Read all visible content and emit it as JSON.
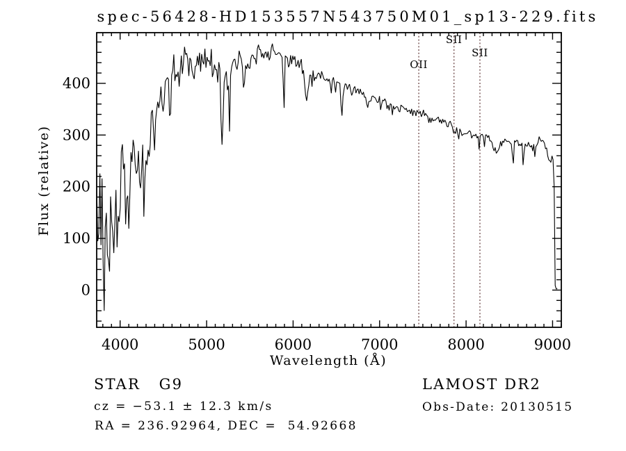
{
  "window": {
    "background": "#ffffff"
  },
  "chart_data": {
    "type": "line",
    "title": "spec-56428-HD153557N543750M01_sp13-229.fits",
    "xlabel": "Wavelength (Å)",
    "ylabel": "Flux (relative)",
    "xlim": [
      3729,
      9101
    ],
    "ylim": [
      -72,
      498
    ],
    "x_major_ticks": [
      4000,
      5000,
      6000,
      7000,
      8000,
      9000
    ],
    "x_minor_step": 100,
    "y_major_ticks": [
      0,
      100,
      200,
      300,
      400
    ],
    "y_minor_step": 20,
    "grid": false,
    "legend": null,
    "background": "#ffffff",
    "line_color": "#000000",
    "marker_line_color": "#6b4444",
    "noise_seed": 20130515,
    "line_markers": [
      {
        "label": "OII",
        "wavelength": 7453,
        "label_baseline_y": 98
      },
      {
        "label": "SII",
        "wavelength": 7860,
        "label_baseline_y": 62
      },
      {
        "label": "SII",
        "wavelength": 8160,
        "label_baseline_y": 81
      }
    ],
    "series": [
      {
        "name": "spectrum",
        "envelope_points": [
          [
            3729,
            120
          ],
          [
            3750,
            150
          ],
          [
            3780,
            160
          ],
          [
            3800,
            150
          ],
          [
            3830,
            118
          ],
          [
            3860,
            148
          ],
          [
            3900,
            108
          ],
          [
            3933,
            55
          ],
          [
            3950,
            160
          ],
          [
            3969,
            110
          ],
          [
            4000,
            218
          ],
          [
            4030,
            245
          ],
          [
            4060,
            215
          ],
          [
            4101,
            152
          ],
          [
            4130,
            268
          ],
          [
            4160,
            295
          ],
          [
            4200,
            262
          ],
          [
            4227,
            196
          ],
          [
            4260,
            278
          ],
          [
            4305,
            214
          ],
          [
            4340,
            290
          ],
          [
            4380,
            334
          ],
          [
            4420,
            328
          ],
          [
            4460,
            364
          ],
          [
            4500,
            384
          ],
          [
            4540,
            404
          ],
          [
            4560,
            392
          ],
          [
            4575,
            310
          ],
          [
            4590,
            398
          ],
          [
            4600,
            424
          ],
          [
            4640,
            440
          ],
          [
            4680,
            415
          ],
          [
            4720,
            450
          ],
          [
            4760,
            460
          ],
          [
            4800,
            440
          ],
          [
            4861,
            404
          ],
          [
            4900,
            450
          ],
          [
            4950,
            455
          ],
          [
            5000,
            435
          ],
          [
            5040,
            445
          ],
          [
            5100,
            432
          ],
          [
            5155,
            415
          ],
          [
            5180,
            275
          ],
          [
            5205,
            415
          ],
          [
            5245,
            420
          ],
          [
            5265,
            330
          ],
          [
            5285,
            428
          ],
          [
            5330,
            440
          ],
          [
            5400,
            448
          ],
          [
            5450,
            442
          ],
          [
            5500,
            448
          ],
          [
            5560,
            452
          ],
          [
            5620,
            458
          ],
          [
            5680,
            458
          ],
          [
            5730,
            463
          ],
          [
            5780,
            464
          ],
          [
            5820,
            461
          ],
          [
            5860,
            452
          ],
          [
            5880,
            450
          ],
          [
            5893,
            324
          ],
          [
            5906,
            448
          ],
          [
            5960,
            448
          ],
          [
            6020,
            442
          ],
          [
            6080,
            438
          ],
          [
            6122,
            424
          ],
          [
            6162,
            371
          ],
          [
            6200,
            420
          ],
          [
            6270,
            417
          ],
          [
            6320,
            412
          ],
          [
            6380,
            408
          ],
          [
            6440,
            406
          ],
          [
            6500,
            402
          ],
          [
            6540,
            399
          ],
          [
            6563,
            331
          ],
          [
            6585,
            397
          ],
          [
            6650,
            393
          ],
          [
            6720,
            388
          ],
          [
            6790,
            383
          ],
          [
            6870,
            362
          ],
          [
            6920,
            372
          ],
          [
            6990,
            369
          ],
          [
            7050,
            366
          ],
          [
            7120,
            360
          ],
          [
            7190,
            351
          ],
          [
            7250,
            354
          ],
          [
            7320,
            349
          ],
          [
            7390,
            347
          ],
          [
            7455,
            344
          ],
          [
            7520,
            341
          ],
          [
            7594,
            328
          ],
          [
            7640,
            331
          ],
          [
            7700,
            329
          ],
          [
            7750,
            327
          ],
          [
            7800,
            324
          ],
          [
            7860,
            313
          ],
          [
            7920,
            307
          ],
          [
            7980,
            301
          ],
          [
            8040,
            303
          ],
          [
            8100,
            297
          ],
          [
            8160,
            294
          ],
          [
            8230,
            299
          ],
          [
            8290,
            284
          ],
          [
            8350,
            271
          ],
          [
            8420,
            288
          ],
          [
            8490,
            287
          ],
          [
            8530,
            284
          ],
          [
            8542,
            222
          ],
          [
            8556,
            287
          ],
          [
            8620,
            283
          ],
          [
            8650,
            285
          ],
          [
            8662,
            226
          ],
          [
            8676,
            288
          ],
          [
            8700,
            288
          ],
          [
            8750,
            283
          ],
          [
            8800,
            279
          ],
          [
            8850,
            293
          ],
          [
            8900,
            284
          ],
          [
            8950,
            259
          ],
          [
            8985,
            248
          ],
          [
            9000,
            266
          ],
          [
            9015,
            238
          ],
          [
            9022,
            150
          ],
          [
            9030,
            8
          ],
          [
            9040,
            3
          ],
          [
            9055,
            2
          ]
        ],
        "noise_amplitude": [
          [
            3729,
            140
          ],
          [
            3780,
            130
          ],
          [
            3850,
            100
          ],
          [
            3950,
            75
          ],
          [
            4050,
            58
          ],
          [
            4150,
            48
          ],
          [
            4250,
            52
          ],
          [
            4350,
            45
          ],
          [
            4450,
            40
          ],
          [
            4550,
            38
          ],
          [
            4650,
            34
          ],
          [
            4750,
            30
          ],
          [
            4850,
            30
          ],
          [
            4950,
            25
          ],
          [
            5050,
            25
          ],
          [
            5150,
            30
          ],
          [
            5180,
            8
          ],
          [
            5250,
            26
          ],
          [
            5350,
            24
          ],
          [
            5450,
            22
          ],
          [
            5550,
            20
          ],
          [
            5650,
            18
          ],
          [
            5750,
            17
          ],
          [
            5850,
            14
          ],
          [
            5893,
            5
          ],
          [
            5950,
            13
          ],
          [
            6050,
            13
          ],
          [
            6150,
            16
          ],
          [
            6250,
            12
          ],
          [
            6350,
            12
          ],
          [
            6450,
            11
          ],
          [
            6563,
            5
          ],
          [
            6650,
            11
          ],
          [
            6750,
            10
          ],
          [
            6850,
            10
          ],
          [
            6950,
            9
          ],
          [
            7050,
            9
          ],
          [
            7150,
            9
          ],
          [
            7250,
            8
          ],
          [
            7350,
            8
          ],
          [
            7450,
            8
          ],
          [
            7550,
            8
          ],
          [
            7650,
            7
          ],
          [
            7750,
            8
          ],
          [
            7850,
            8
          ],
          [
            7950,
            8
          ],
          [
            8050,
            9
          ],
          [
            8150,
            10
          ],
          [
            8250,
            11
          ],
          [
            8350,
            9
          ],
          [
            8450,
            8
          ],
          [
            8542,
            4
          ],
          [
            8600,
            8
          ],
          [
            8662,
            4
          ],
          [
            8720,
            8
          ],
          [
            8800,
            10
          ],
          [
            8880,
            10
          ],
          [
            8950,
            8
          ],
          [
            9000,
            6
          ],
          [
            9022,
            3
          ],
          [
            9055,
            1
          ]
        ]
      }
    ]
  },
  "footer": {
    "class_line_left": "STAR   G9",
    "class_line_right": "LAMOST DR2",
    "cz_line": "cz = −53.1 ± 12.3 km/s",
    "obs_line": "Obs-Date: 20130515",
    "radec_line": "RA = 236.92964, DEC =  54.92668"
  }
}
